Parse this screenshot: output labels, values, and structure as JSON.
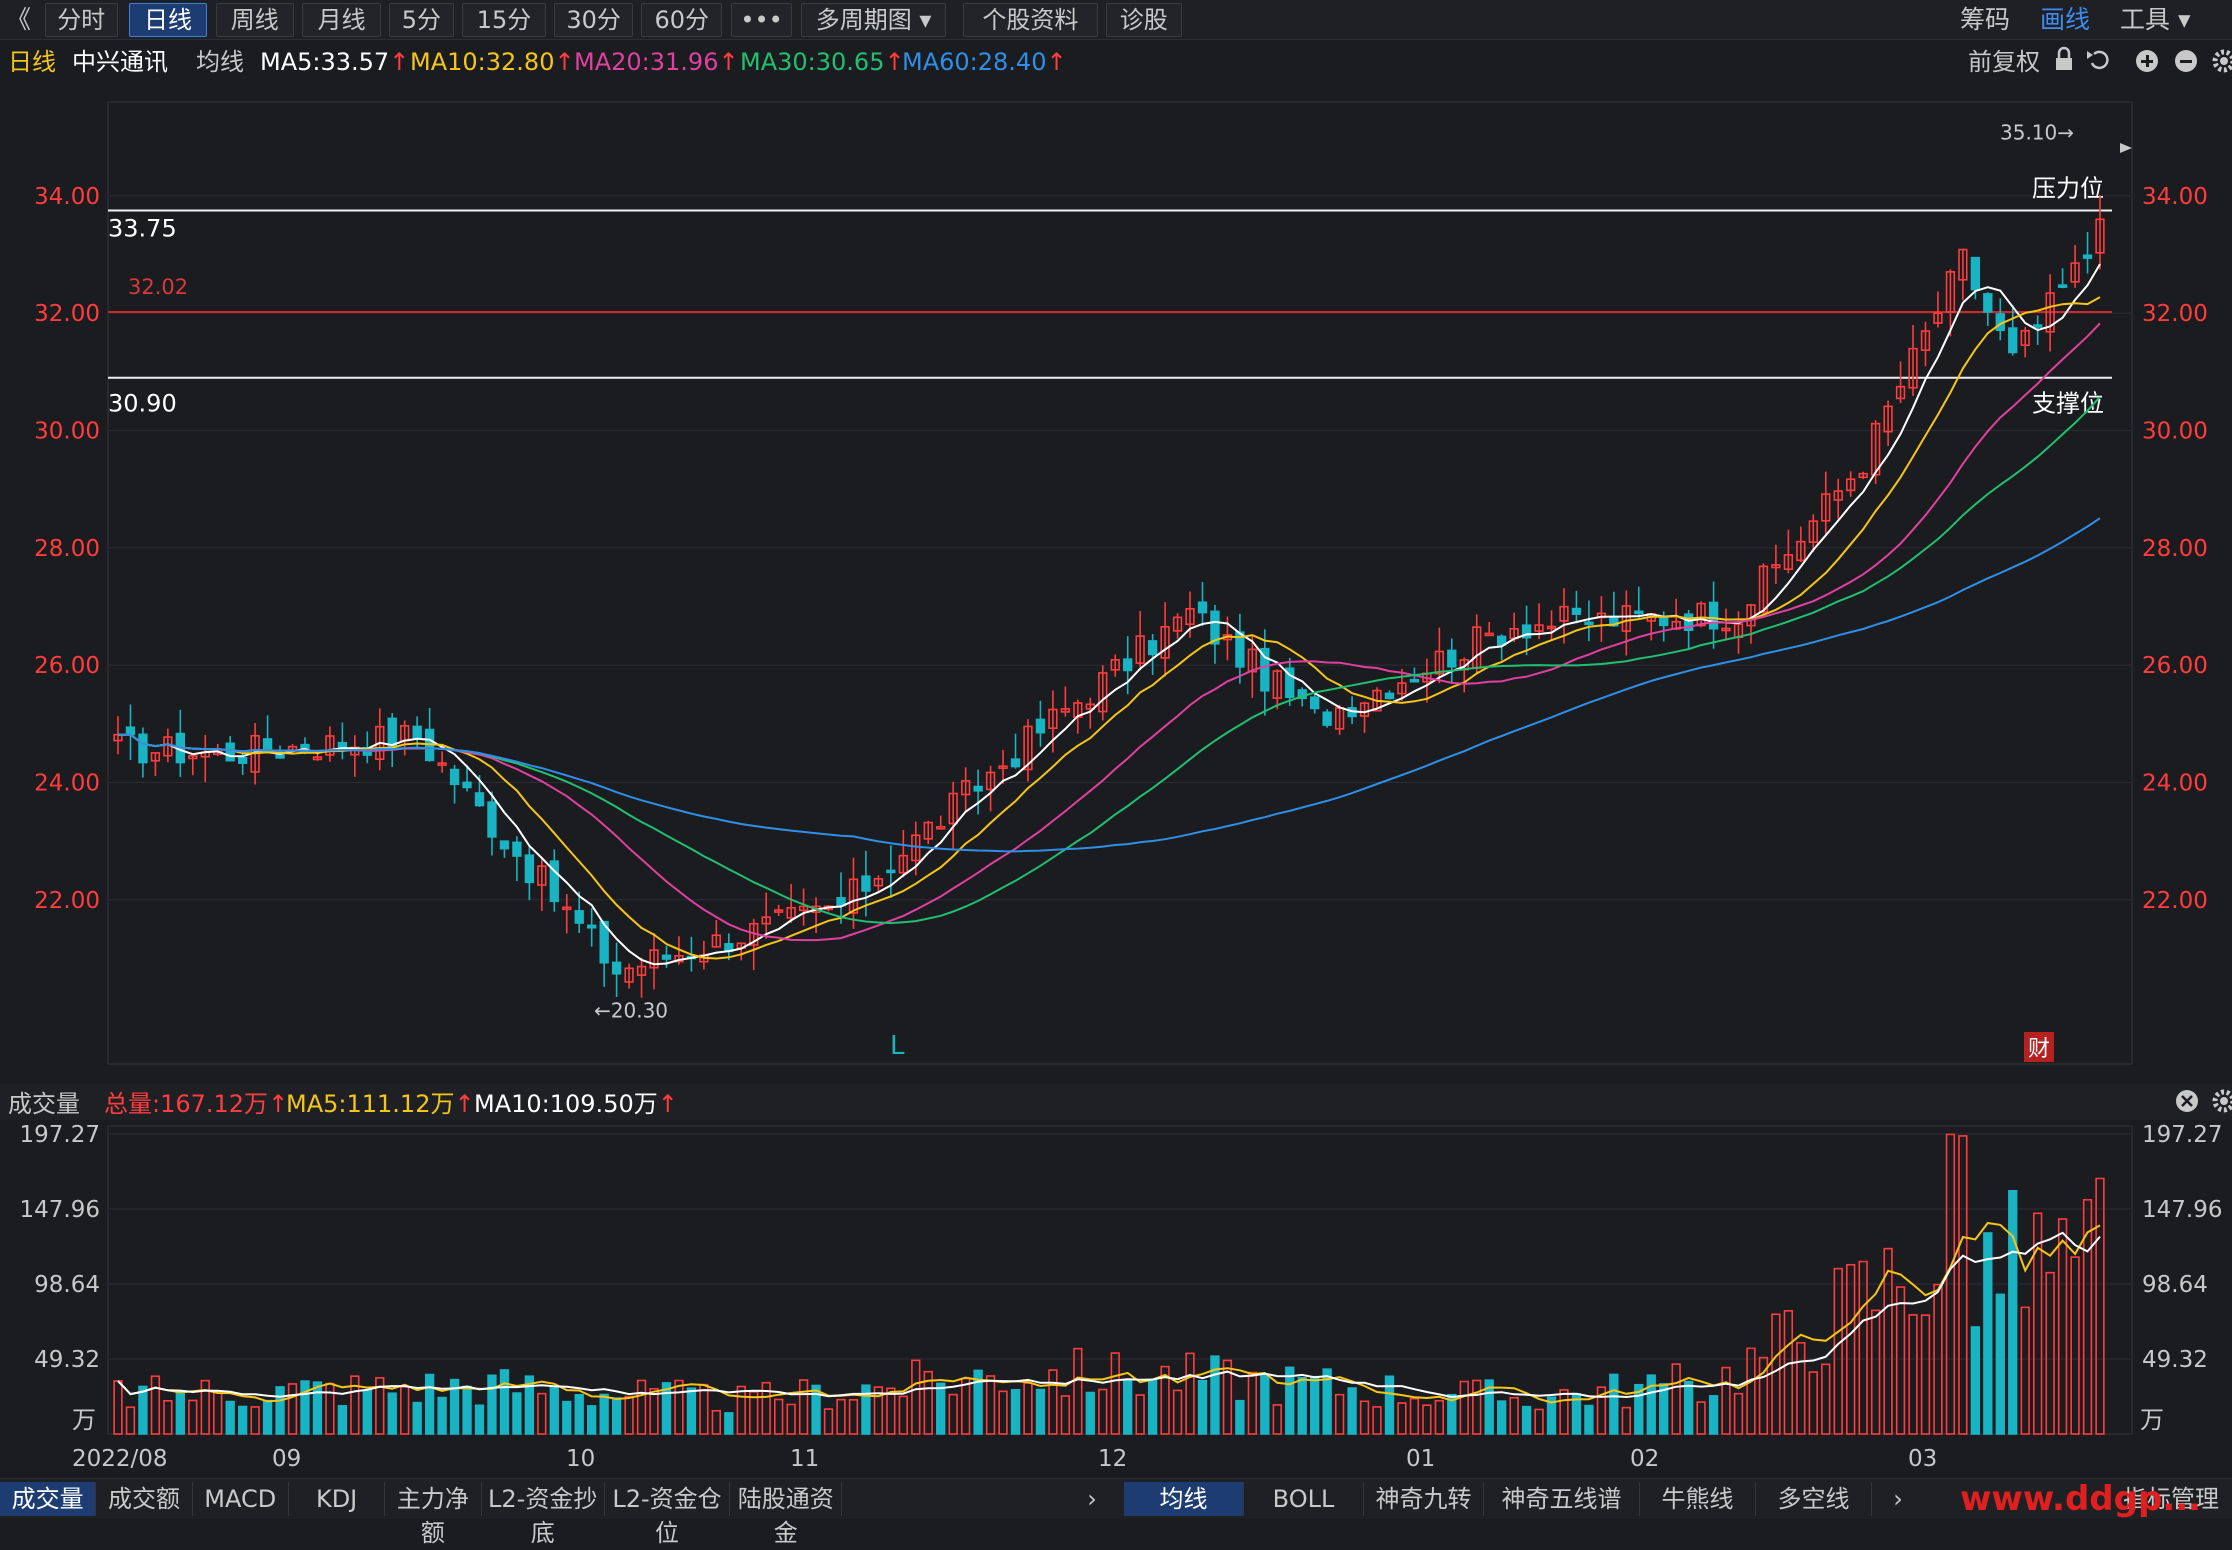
{
  "toolbar": {
    "back_icon": "double-chevron-left-icon",
    "buttons": [
      {
        "label": "分时",
        "active": false
      },
      {
        "label": "日线",
        "active": true
      },
      {
        "label": "周线",
        "active": false
      },
      {
        "label": "月线",
        "active": false
      },
      {
        "label": "5分",
        "active": false
      },
      {
        "label": "15分",
        "active": false
      },
      {
        "label": "30分",
        "active": false
      },
      {
        "label": "60分",
        "active": false
      },
      {
        "label": "•••",
        "active": false
      },
      {
        "label": "多周期图 ▾",
        "active": false
      },
      {
        "label": "个股资料",
        "active": false
      },
      {
        "label": "诊股",
        "active": false
      }
    ],
    "right": {
      "chips": "筹码",
      "draw": "画线",
      "tools": "工具 ▾"
    }
  },
  "info": {
    "period": "日线",
    "stock": "中兴通讯",
    "ma_label": "均线",
    "ma": [
      {
        "text": "MA5:33.57",
        "color": "#ffffff"
      },
      {
        "text": "MA10:32.80",
        "color": "#f5c518"
      },
      {
        "text": "MA20:31.96",
        "color": "#e040a0"
      },
      {
        "text": "MA30:30.65",
        "color": "#20c070"
      },
      {
        "text": "MA60:28.40",
        "color": "#2f8fe8"
      }
    ],
    "arrow": "↑",
    "restore": "前复权",
    "icons": [
      "lock-icon",
      "undo-icon",
      "plus-circle-icon",
      "minus-circle-icon",
      "gear-icon"
    ]
  },
  "price_axis": {
    "labels": [
      "34.00",
      "32.00",
      "30.00",
      "28.00",
      "26.00",
      "24.00",
      "22.00"
    ],
    "values": [
      34,
      32,
      30,
      28,
      26,
      24,
      22
    ]
  },
  "annotations": {
    "resistance_value": "33.75",
    "resistance_label": "压力位",
    "support_value": "30.90",
    "support_label": "支撑位",
    "red_line_value": "32.02",
    "high_mark": "35.10→",
    "low_mark": "←20.30",
    "l_marker": "L",
    "fin_marker": "财"
  },
  "volume_panel": {
    "title": "成交量",
    "total": "总量:167.12万",
    "ma5": "MA5:111.12万",
    "ma10": "MA10:109.50万",
    "arrow": "↑",
    "axis": [
      "197.27",
      "147.96",
      "98.64",
      "49.32"
    ],
    "unit": "万",
    "close_icon": "close-circle-icon",
    "gear_icon": "gear-icon"
  },
  "date_axis": [
    "2022/08",
    "09",
    "10",
    "11",
    "12",
    "01",
    "02",
    "03"
  ],
  "bottom_tabs_left": [
    "成交量",
    "成交额",
    "MACD",
    "KDJ",
    "主力净额",
    "L2-资金抄底",
    "L2-资金仓位",
    "陆股通资金"
  ],
  "bottom_tabs_right": [
    "均线",
    "BOLL",
    "神奇九转",
    "神奇五线谱",
    "牛熊线",
    "多空线"
  ],
  "bottom_right": {
    "manage": "指标管理",
    "watermark": "www.ddgp..."
  },
  "colors": {
    "up": "#ff3d3d",
    "down": "#18b4c4",
    "ma5": "#ffffff",
    "ma10": "#f5c518",
    "ma20": "#e040a0",
    "ma30": "#20c070",
    "ma60": "#2f8fe8",
    "bg": "#1b1c20"
  },
  "chart_data": {
    "type": "candlestick",
    "symbol": "中兴通讯",
    "period": "daily",
    "x_labels": [
      "2022/08",
      "09",
      "10",
      "11",
      "12",
      "01",
      "02",
      "03"
    ],
    "price_range": [
      19.2,
      35.6
    ],
    "horizontal_lines": [
      33.75,
      32.02,
      30.9
    ],
    "highest": 35.1,
    "lowest": 20.3,
    "segments": [
      {
        "from": 0,
        "to": 8,
        "price_from": 24.6,
        "price_to": 24.5
      },
      {
        "from": 8,
        "to": 24,
        "price_from": 24.5,
        "price_to": 24.8
      },
      {
        "from": 24,
        "to": 40,
        "price_from": 24.8,
        "price_to": 20.8
      },
      {
        "from": 40,
        "to": 58,
        "price_from": 20.8,
        "price_to": 21.9
      },
      {
        "from": 58,
        "to": 74,
        "price_from": 21.9,
        "price_to": 24.9
      },
      {
        "from": 74,
        "to": 86,
        "price_from": 24.9,
        "price_to": 26.9
      },
      {
        "from": 86,
        "to": 96,
        "price_from": 26.9,
        "price_to": 25.1
      },
      {
        "from": 96,
        "to": 112,
        "price_from": 25.1,
        "price_to": 26.7
      },
      {
        "from": 112,
        "to": 130,
        "price_from": 26.7,
        "price_to": 26.9
      },
      {
        "from": 130,
        "to": 140,
        "price_from": 26.9,
        "price_to": 29.5
      },
      {
        "from": 140,
        "to": 148,
        "price_from": 29.5,
        "price_to": 32.9
      },
      {
        "from": 148,
        "to": 152,
        "price_from": 32.9,
        "price_to": 31.2
      },
      {
        "from": 152,
        "to": 160,
        "price_from": 31.2,
        "price_to": 33.6
      }
    ],
    "volume_range": [
      0,
      197.27
    ],
    "volume_segments": [
      {
        "from": 0,
        "to": 30,
        "v_from": 26,
        "v_to": 32
      },
      {
        "from": 30,
        "to": 50,
        "v_from": 32,
        "v_to": 22
      },
      {
        "from": 50,
        "to": 72,
        "v_from": 22,
        "v_to": 40
      },
      {
        "from": 72,
        "to": 86,
        "v_from": 40,
        "v_to": 38
      },
      {
        "from": 86,
        "to": 112,
        "v_from": 38,
        "v_to": 24
      },
      {
        "from": 112,
        "to": 128,
        "v_from": 24,
        "v_to": 34
      },
      {
        "from": 128,
        "to": 144,
        "v_from": 34,
        "v_to": 110
      },
      {
        "from": 144,
        "to": 160,
        "v_from": 110,
        "v_to": 115
      }
    ]
  }
}
